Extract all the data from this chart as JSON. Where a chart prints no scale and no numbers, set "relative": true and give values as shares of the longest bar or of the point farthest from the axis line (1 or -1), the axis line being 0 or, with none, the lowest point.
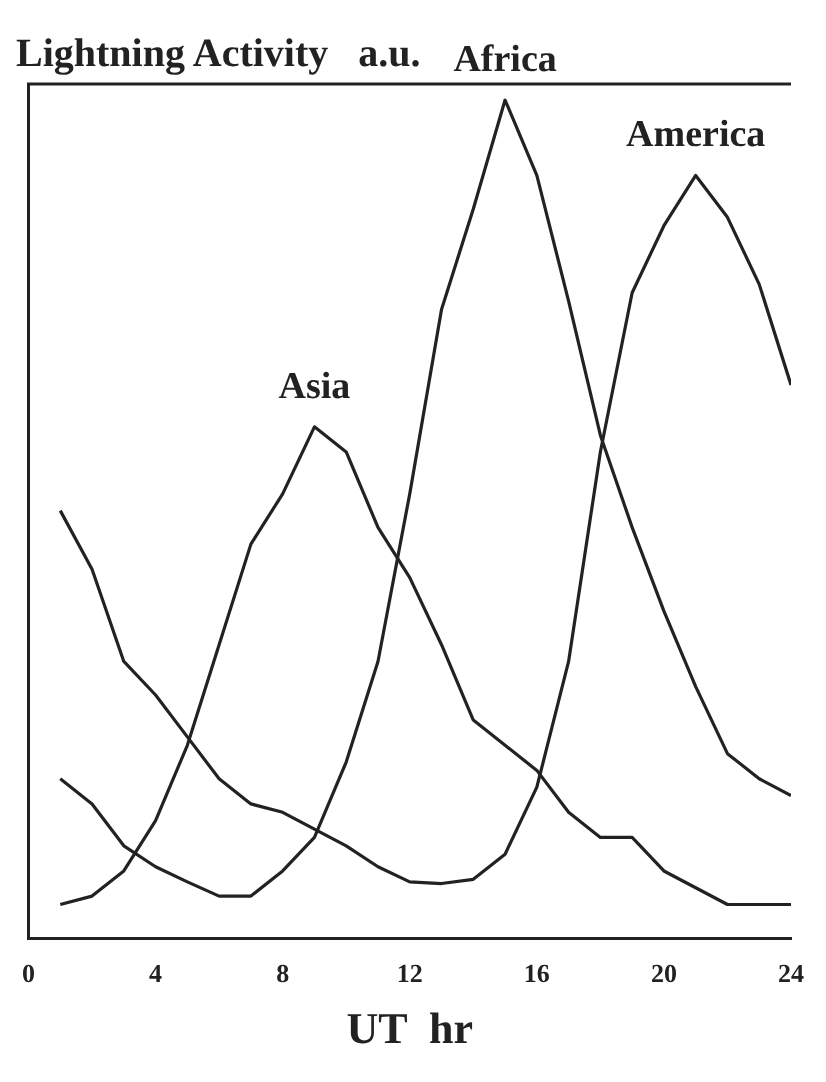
{
  "chart_data": {
    "type": "line",
    "title": "Lightning Activity   a.u.",
    "xlabel": "UT  hr",
    "relative": true,
    "x": [
      1,
      2,
      3,
      4,
      5,
      6,
      7,
      8,
      9,
      10,
      11,
      12,
      13,
      14,
      15,
      16,
      17,
      18,
      19,
      20,
      21,
      22,
      23,
      24
    ],
    "xlim": [
      0,
      24
    ],
    "xticks": [
      0,
      4,
      8,
      12,
      16,
      20,
      24
    ],
    "grid": false,
    "legend": false,
    "marker": "none",
    "line_style": "solid",
    "series": [
      {
        "name": "Asia",
        "color": "#222222",
        "values": [
          0.04,
          0.05,
          0.08,
          0.14,
          0.23,
          0.35,
          0.47,
          0.53,
          0.61,
          0.58,
          0.49,
          0.43,
          0.35,
          0.26,
          0.23,
          0.2,
          0.15,
          0.12,
          0.12,
          0.08,
          0.06,
          0.04,
          0.04,
          0.04
        ]
      },
      {
        "name": "Africa",
        "color": "#222222",
        "values": [
          0.19,
          0.16,
          0.11,
          0.085,
          0.067,
          0.05,
          0.05,
          0.08,
          0.12,
          0.21,
          0.33,
          0.53,
          0.75,
          0.87,
          1,
          0.91,
          0.76,
          0.6,
          0.49,
          0.39,
          0.3,
          0.22,
          0.19,
          0.17
        ]
      },
      {
        "name": "America",
        "color": "#222222",
        "values": [
          0.51,
          0.44,
          0.33,
          0.29,
          0.24,
          0.19,
          0.16,
          0.15,
          0.13,
          0.11,
          0.085,
          0.067,
          0.065,
          0.07,
          0.1,
          0.18,
          0.33,
          0.58,
          0.77,
          0.85,
          0.91,
          0.86,
          0.78,
          0.66
        ]
      }
    ]
  }
}
